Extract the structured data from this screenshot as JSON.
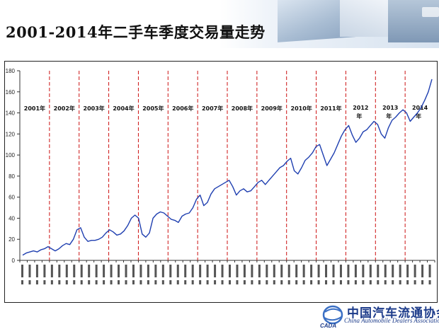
{
  "header": {
    "title": "2001-2014年二手车季度交易量走势"
  },
  "footer": {
    "org_cn": "中国汽车流通协会",
    "org_en": "China Automobile Dealers Association",
    "logo_text": "CADA"
  },
  "colors": {
    "line": "#1f3fb0",
    "divider": "#cc1111",
    "axis": "#333333",
    "title_brand": "#1c3b8a"
  },
  "chart_data": {
    "type": "line",
    "title": "",
    "xlabel": "",
    "ylabel": "",
    "ylim": [
      0,
      180
    ],
    "yticks": [
      0,
      20,
      40,
      60,
      80,
      100,
      120,
      140,
      160,
      180
    ],
    "grid": false,
    "legend": "none",
    "x_tick_format": "YYYY年M月",
    "x_tick_note": "rotated labels, ~4 per year; values illegible at source resolution",
    "year_labels": [
      "2001年",
      "2002年",
      "2003年",
      "2004年",
      "2005年",
      "2006年",
      "2007年",
      "2008年",
      "2009年",
      "2010年",
      "2011年",
      "2012年",
      "2013年",
      "2014年"
    ],
    "series": [
      {
        "values": [
          5,
          7,
          8,
          9,
          8,
          10,
          11,
          13,
          11,
          9,
          11,
          14,
          16,
          15,
          20,
          29,
          31,
          22,
          18,
          19,
          19,
          20,
          22,
          26,
          29,
          27,
          24,
          25,
          28,
          33,
          40,
          43,
          40,
          25,
          22,
          26,
          40,
          44,
          46,
          45,
          42,
          39,
          38,
          36,
          42,
          44,
          45,
          50,
          58,
          62,
          52,
          55,
          63,
          68,
          70,
          72,
          74,
          76,
          70,
          62,
          66,
          68,
          65,
          66,
          70,
          74,
          76,
          72,
          76,
          80,
          84,
          88,
          90,
          94,
          97,
          85,
          82,
          88,
          95,
          98,
          102,
          108,
          110,
          100,
          90,
          96,
          102,
          110,
          118,
          124,
          128,
          119,
          112,
          116,
          122,
          124,
          128,
          132,
          129,
          120,
          116,
          126,
          133,
          136,
          140,
          143,
          140,
          132,
          136,
          140,
          145,
          152,
          160,
          172
        ]
      }
    ]
  }
}
